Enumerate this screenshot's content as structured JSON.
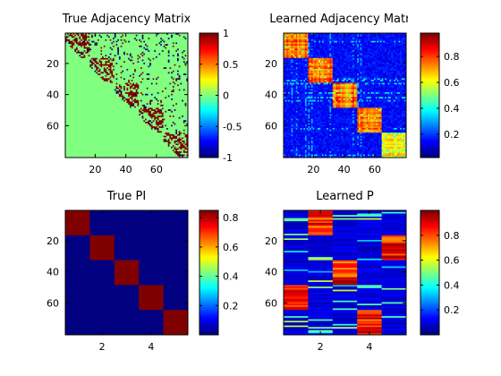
{
  "chart_data": [
    {
      "type": "heatmap",
      "title": "True Adjacency Matrix",
      "rows": 80,
      "cols": 80,
      "yticks": [
        20,
        40,
        60
      ],
      "xticks": [
        20,
        40,
        60
      ],
      "colorbar": {
        "min": -1,
        "max": 1,
        "ticks": [
          "1",
          "0.5",
          "0",
          "-0.5",
          "-1"
        ],
        "tick_values": [
          1,
          0.5,
          0,
          -0.5,
          -1
        ]
      },
      "description_values": {
        "upper_triangle": 0,
        "lower_triangle": 0,
        "block_diagonal_edges": 1,
        "sparse_negative": -1
      },
      "blocks": [
        [
          0,
          16
        ],
        [
          16,
          32
        ],
        [
          32,
          48
        ],
        [
          48,
          64
        ],
        [
          64,
          80
        ]
      ]
    },
    {
      "type": "heatmap",
      "title": "Learned Adjacency Matrix",
      "rows": 80,
      "cols": 80,
      "yticks": [
        20,
        40,
        60
      ],
      "xticks": [
        20,
        40,
        60
      ],
      "colorbar": {
        "min": 0.02,
        "max": 0.98,
        "ticks": [
          "0.8",
          "0.6",
          "0.4",
          "0.2"
        ],
        "tick_values": [
          0.8,
          0.6,
          0.4,
          0.2
        ]
      },
      "blocks": [
        [
          0,
          16
        ],
        [
          16,
          32
        ],
        [
          32,
          48
        ],
        [
          48,
          64
        ],
        [
          64,
          80
        ]
      ]
    },
    {
      "type": "heatmap",
      "title": "True PI",
      "rows": 80,
      "cols": 5,
      "yticks": [
        20,
        40,
        60
      ],
      "xticks": [
        2,
        4
      ],
      "colorbar": {
        "min": 0,
        "max": 0.85,
        "ticks": [
          "0.8",
          "0.6",
          "0.4",
          "0.2"
        ],
        "tick_values": [
          0.8,
          0.6,
          0.4,
          0.2
        ]
      },
      "assignments": [
        [
          0,
          16,
          1
        ],
        [
          16,
          32,
          2
        ],
        [
          32,
          48,
          3
        ],
        [
          48,
          64,
          4
        ],
        [
          64,
          80,
          5
        ]
      ]
    },
    {
      "type": "heatmap",
      "title": "Learned P",
      "rows": 80,
      "cols": 5,
      "yticks": [
        20,
        40,
        60
      ],
      "xticks": [
        2,
        4
      ],
      "colorbar": {
        "min": 0,
        "max": 1,
        "ticks": [
          "0.8",
          "0.6",
          "0.4",
          "0.2"
        ],
        "tick_values": [
          0.8,
          0.6,
          0.4,
          0.2
        ]
      },
      "assignments": [
        [
          0,
          16,
          2
        ],
        [
          16,
          32,
          5
        ],
        [
          32,
          48,
          3
        ],
        [
          48,
          64,
          1
        ],
        [
          64,
          80,
          4
        ]
      ]
    }
  ]
}
